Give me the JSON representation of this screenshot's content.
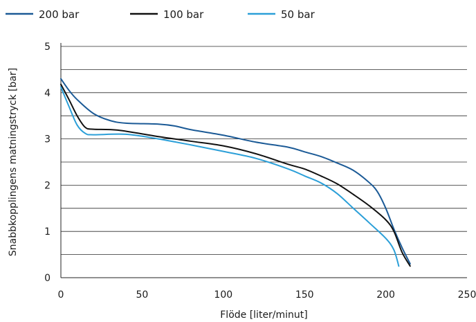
{
  "chart_data": {
    "type": "line",
    "title": "",
    "xlabel": "Flöde [liter/minut]",
    "ylabel": "Snabbkopplingens matningstryck [bar]",
    "xlim": [
      0,
      250
    ],
    "ylim": [
      0,
      5
    ],
    "x_ticks": [
      "0",
      "50",
      "100",
      "150",
      "200",
      "250"
    ],
    "y_ticks": [
      "0",
      "1",
      "2",
      "3",
      "4",
      "5"
    ],
    "grid": "horizontal",
    "legend_position": "top",
    "series": [
      {
        "name": "200 bar",
        "color": "#1b5a96",
        "points": [
          [
            0,
            4.3
          ],
          [
            5,
            4.05
          ],
          [
            10,
            3.85
          ],
          [
            20,
            3.55
          ],
          [
            30,
            3.4
          ],
          [
            40,
            3.34
          ],
          [
            60,
            3.32
          ],
          [
            70,
            3.28
          ],
          [
            80,
            3.2
          ],
          [
            100,
            3.08
          ],
          [
            120,
            2.93
          ],
          [
            140,
            2.82
          ],
          [
            150,
            2.72
          ],
          [
            160,
            2.62
          ],
          [
            170,
            2.48
          ],
          [
            180,
            2.32
          ],
          [
            190,
            2.05
          ],
          [
            195,
            1.85
          ],
          [
            200,
            1.5
          ],
          [
            205,
            1.05
          ],
          [
            210,
            0.65
          ],
          [
            215,
            0.3
          ]
        ]
      },
      {
        "name": "100 bar",
        "color": "#111111",
        "points": [
          [
            0,
            4.18
          ],
          [
            5,
            3.85
          ],
          [
            10,
            3.5
          ],
          [
            15,
            3.25
          ],
          [
            20,
            3.21
          ],
          [
            35,
            3.19
          ],
          [
            60,
            3.05
          ],
          [
            80,
            2.95
          ],
          [
            100,
            2.85
          ],
          [
            120,
            2.68
          ],
          [
            140,
            2.45
          ],
          [
            150,
            2.35
          ],
          [
            160,
            2.2
          ],
          [
            170,
            2.03
          ],
          [
            180,
            1.8
          ],
          [
            190,
            1.55
          ],
          [
            200,
            1.25
          ],
          [
            205,
            1.0
          ],
          [
            210,
            0.55
          ],
          [
            215,
            0.25
          ]
        ]
      },
      {
        "name": "50 bar",
        "color": "#2b9fd8",
        "points": [
          [
            0,
            4.12
          ],
          [
            5,
            3.7
          ],
          [
            10,
            3.3
          ],
          [
            15,
            3.12
          ],
          [
            20,
            3.09
          ],
          [
            40,
            3.1
          ],
          [
            60,
            3.0
          ],
          [
            80,
            2.87
          ],
          [
            100,
            2.73
          ],
          [
            120,
            2.58
          ],
          [
            140,
            2.35
          ],
          [
            150,
            2.2
          ],
          [
            160,
            2.05
          ],
          [
            170,
            1.82
          ],
          [
            180,
            1.5
          ],
          [
            190,
            1.18
          ],
          [
            200,
            0.85
          ],
          [
            205,
            0.6
          ],
          [
            208,
            0.25
          ]
        ]
      }
    ]
  }
}
